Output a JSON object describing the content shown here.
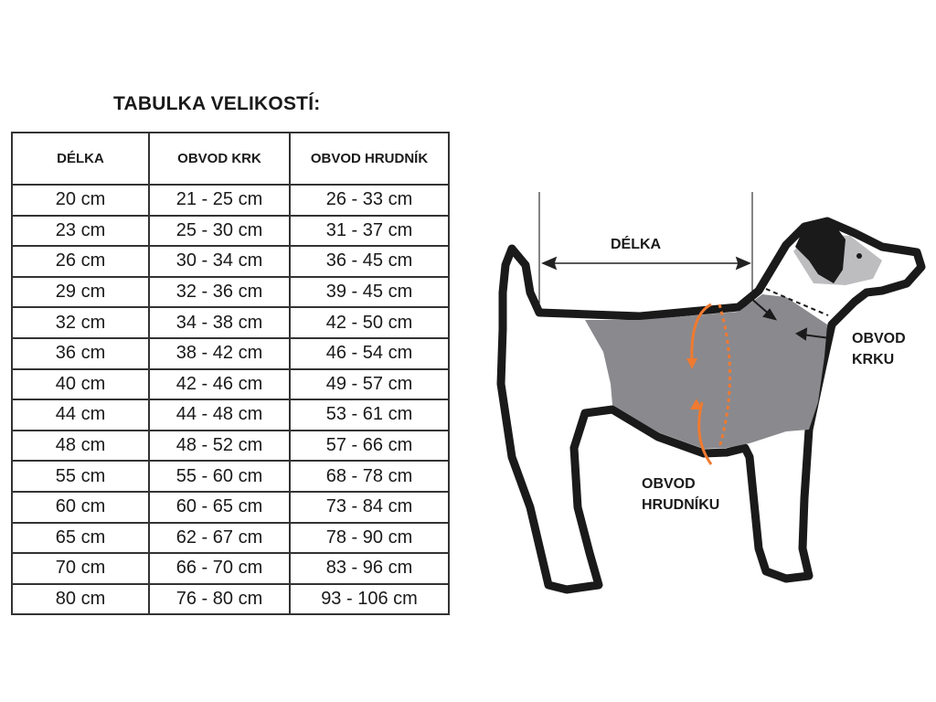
{
  "title": "TABULKA VELIKOSTÍ:",
  "table": {
    "headers": [
      "DÉLKA",
      "OBVOD KRK",
      "OBVOD HRUDNÍK"
    ],
    "rows": [
      [
        "20 cm",
        "21 - 25 cm",
        "26 - 33 cm"
      ],
      [
        "23 cm",
        "25 - 30 cm",
        "31 - 37 cm"
      ],
      [
        "26 cm",
        "30 - 34 cm",
        "36 - 45 cm"
      ],
      [
        "29 cm",
        "32 - 36 cm",
        "39 - 45 cm"
      ],
      [
        "32 cm",
        "34 - 38 cm",
        "42 - 50 cm"
      ],
      [
        "36 cm",
        "38 - 42 cm",
        "46 - 54 cm"
      ],
      [
        "40 cm",
        "42 - 46 cm",
        "49 - 57 cm"
      ],
      [
        "44 cm",
        "44 - 48 cm",
        "53 - 61 cm"
      ],
      [
        "48 cm",
        "48 - 52 cm",
        "57 - 66 cm"
      ],
      [
        "55 cm",
        "55 - 60 cm",
        "68 - 78 cm"
      ],
      [
        "60 cm",
        "60 - 65 cm",
        "73 - 84 cm"
      ],
      [
        "65 cm",
        "62 - 67 cm",
        "78 - 90 cm"
      ],
      [
        "70 cm",
        "66 - 70 cm",
        "83 - 96 cm"
      ],
      [
        "80 cm",
        "76 - 80 cm",
        "93 - 106 cm"
      ]
    ]
  },
  "diagram": {
    "length_label": "DÉLKA",
    "neck_label": [
      "OBVOD",
      "KRKU"
    ],
    "chest_label": [
      "OBVOD",
      "HRUDNÍKU"
    ],
    "colors": {
      "outline": "#1a1a1a",
      "coat": "#8a898e",
      "arrow": "#f07a30",
      "ear": "#bdbdc0"
    }
  }
}
